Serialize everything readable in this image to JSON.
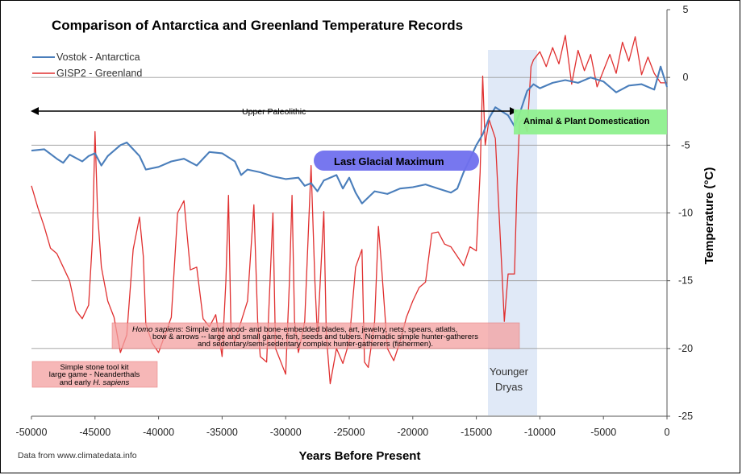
{
  "chart_data": {
    "type": "line",
    "title": "Comparison of Antarctica and Greenland Temperature Records",
    "xlabel": "Years Before Present",
    "ylabel": "Temperature (°C)",
    "xlim": [
      -50000,
      0
    ],
    "ylim": [
      -25,
      5
    ],
    "x_ticks": [
      "-50000",
      "-45000",
      "-40000",
      "-35000",
      "-30000",
      "-25000",
      "-20000",
      "-15000",
      "-10000",
      "-5000",
      "0"
    ],
    "y_ticks": [
      "5",
      "0",
      "-5",
      "-10",
      "-15",
      "-20",
      "-25"
    ],
    "gridlines": [
      -25,
      -20,
      -15,
      -10,
      -5,
      0
    ],
    "colors": {
      "vostok": "#4a7ebb",
      "gisp2": "#e03030"
    },
    "series": [
      {
        "name": "Vostok - Antarctica",
        "points": [
          [
            -50000,
            -5.4
          ],
          [
            -49000,
            -5.3
          ],
          [
            -48000,
            -6
          ],
          [
            -47500,
            -6.3
          ],
          [
            -47000,
            -5.7
          ],
          [
            -46000,
            -6.2
          ],
          [
            -45500,
            -5.8
          ],
          [
            -45000,
            -5.6
          ],
          [
            -44500,
            -6.5
          ],
          [
            -44000,
            -5.8
          ],
          [
            -43500,
            -5.4
          ],
          [
            -43000,
            -5
          ],
          [
            -42500,
            -4.8
          ],
          [
            -42000,
            -5.3
          ],
          [
            -41500,
            -5.8
          ],
          [
            -41000,
            -6.8
          ],
          [
            -40000,
            -6.6
          ],
          [
            -39000,
            -6.2
          ],
          [
            -38000,
            -6
          ],
          [
            -37000,
            -6.5
          ],
          [
            -36000,
            -5.5
          ],
          [
            -35000,
            -5.6
          ],
          [
            -34000,
            -6.2
          ],
          [
            -33500,
            -7.2
          ],
          [
            -33000,
            -6.8
          ],
          [
            -32000,
            -7
          ],
          [
            -31000,
            -7.3
          ],
          [
            -30000,
            -7.5
          ],
          [
            -29000,
            -7.4
          ],
          [
            -28500,
            -8
          ],
          [
            -28000,
            -7.8
          ],
          [
            -27500,
            -8.4
          ],
          [
            -27000,
            -7.6
          ],
          [
            -26000,
            -7.2
          ],
          [
            -25500,
            -8.2
          ],
          [
            -25000,
            -7.4
          ],
          [
            -24500,
            -8.5
          ],
          [
            -24000,
            -9.3
          ],
          [
            -23000,
            -8.4
          ],
          [
            -22000,
            -8.6
          ],
          [
            -21000,
            -8.2
          ],
          [
            -20000,
            -8.1
          ],
          [
            -19000,
            -7.9
          ],
          [
            -18000,
            -8.2
          ],
          [
            -17000,
            -8.5
          ],
          [
            -16500,
            -8.2
          ],
          [
            -16000,
            -7
          ],
          [
            -15500,
            -6
          ],
          [
            -15000,
            -5
          ],
          [
            -14500,
            -4.2
          ],
          [
            -14000,
            -3
          ],
          [
            -13500,
            -2.2
          ],
          [
            -13000,
            -2.5
          ],
          [
            -12500,
            -2.8
          ],
          [
            -12000,
            -3.6
          ],
          [
            -11500,
            -2.4
          ],
          [
            -11000,
            -1
          ],
          [
            -10500,
            -0.5
          ],
          [
            -10000,
            -0.8
          ],
          [
            -9000,
            -0.4
          ],
          [
            -8000,
            -0.2
          ],
          [
            -7000,
            -0.4
          ],
          [
            -6000,
            0
          ],
          [
            -5000,
            -0.3
          ],
          [
            -4000,
            -1.1
          ],
          [
            -3000,
            -0.6
          ],
          [
            -2000,
            -0.5
          ],
          [
            -1000,
            -0.9
          ],
          [
            -500,
            0.8
          ],
          [
            0,
            -0.7
          ]
        ]
      },
      {
        "name": "GISP2 - Greenland",
        "points": [
          [
            -50000,
            -8
          ],
          [
            -49500,
            -9.6
          ],
          [
            -49000,
            -11
          ],
          [
            -48500,
            -12.6
          ],
          [
            -48000,
            -13
          ],
          [
            -47500,
            -14
          ],
          [
            -47000,
            -15
          ],
          [
            -46500,
            -17.2
          ],
          [
            -46000,
            -17.8
          ],
          [
            -45500,
            -16.8
          ],
          [
            -45200,
            -12
          ],
          [
            -45000,
            -4
          ],
          [
            -44800,
            -10
          ],
          [
            -44500,
            -14
          ],
          [
            -44000,
            -16.5
          ],
          [
            -43500,
            -17.7
          ],
          [
            -43000,
            -20.3
          ],
          [
            -42500,
            -19
          ],
          [
            -42000,
            -12.7
          ],
          [
            -41500,
            -10.3
          ],
          [
            -41200,
            -13.2
          ],
          [
            -41000,
            -18.2
          ],
          [
            -40500,
            -19.6
          ],
          [
            -40000,
            -20.3
          ],
          [
            -39500,
            -19
          ],
          [
            -39000,
            -17.7
          ],
          [
            -38500,
            -10
          ],
          [
            -38000,
            -9.1
          ],
          [
            -37500,
            -14.2
          ],
          [
            -37000,
            -14
          ],
          [
            -36500,
            -17.8
          ],
          [
            -36000,
            -18.4
          ],
          [
            -35500,
            -17.5
          ],
          [
            -35000,
            -20.6
          ],
          [
            -34700,
            -15
          ],
          [
            -34500,
            -8.7
          ],
          [
            -34300,
            -18.7
          ],
          [
            -34000,
            -19.5
          ],
          [
            -33500,
            -18
          ],
          [
            -33000,
            -16.5
          ],
          [
            -32500,
            -9.4
          ],
          [
            -32200,
            -18
          ],
          [
            -32000,
            -20.6
          ],
          [
            -31500,
            -21
          ],
          [
            -31000,
            -10
          ],
          [
            -30800,
            -20
          ],
          [
            -30500,
            -20.7
          ],
          [
            -30000,
            -21.9
          ],
          [
            -29700,
            -15
          ],
          [
            -29500,
            -8.7
          ],
          [
            -29300,
            -18
          ],
          [
            -29000,
            -20.3
          ],
          [
            -28500,
            -18
          ],
          [
            -28000,
            -6.5
          ],
          [
            -27700,
            -15
          ],
          [
            -27500,
            -19.1
          ],
          [
            -27000,
            -9.9
          ],
          [
            -26800,
            -19
          ],
          [
            -26500,
            -22.6
          ],
          [
            -26000,
            -20
          ],
          [
            -25500,
            -21.1
          ],
          [
            -25000,
            -19.5
          ],
          [
            -24500,
            -14
          ],
          [
            -24000,
            -12.7
          ],
          [
            -23800,
            -21
          ],
          [
            -23500,
            -21.4
          ],
          [
            -23000,
            -18
          ],
          [
            -22700,
            -11
          ],
          [
            -22500,
            -13.4
          ],
          [
            -22000,
            -20
          ],
          [
            -21500,
            -20.9
          ],
          [
            -21000,
            -19.5
          ],
          [
            -20500,
            -17.7
          ],
          [
            -20000,
            -16.5
          ],
          [
            -19500,
            -15.5
          ],
          [
            -19000,
            -15.1
          ],
          [
            -18500,
            -11.5
          ],
          [
            -18000,
            -11.4
          ],
          [
            -17500,
            -12.3
          ],
          [
            -17000,
            -12.5
          ],
          [
            -16500,
            -13.2
          ],
          [
            -16000,
            -13.9
          ],
          [
            -15500,
            -12.5
          ],
          [
            -15000,
            -12.8
          ],
          [
            -14700,
            -7
          ],
          [
            -14500,
            0.1
          ],
          [
            -14300,
            -5
          ],
          [
            -14000,
            -3.1
          ],
          [
            -13500,
            -4.5
          ],
          [
            -13000,
            -14
          ],
          [
            -12800,
            -18
          ],
          [
            -12500,
            -14.5
          ],
          [
            -12000,
            -14.5
          ],
          [
            -11800,
            -8
          ],
          [
            -11600,
            -3.3
          ],
          [
            -11300,
            -3.1
          ],
          [
            -11000,
            -4
          ],
          [
            -10700,
            0.8
          ],
          [
            -10500,
            1.3
          ],
          [
            -10000,
            1.9
          ],
          [
            -9500,
            0.8
          ],
          [
            -9000,
            2.2
          ],
          [
            -8500,
            1
          ],
          [
            -8000,
            3.1
          ],
          [
            -7500,
            -0.5
          ],
          [
            -7000,
            2
          ],
          [
            -6500,
            0.5
          ],
          [
            -6000,
            1.7
          ],
          [
            -5500,
            -0.7
          ],
          [
            -5000,
            0.5
          ],
          [
            -4500,
            1.7
          ],
          [
            -4000,
            0.3
          ],
          [
            -3500,
            2.6
          ],
          [
            -3000,
            1.2
          ],
          [
            -2500,
            3
          ],
          [
            -2000,
            0.2
          ],
          [
            -1500,
            1.5
          ],
          [
            -1000,
            0.3
          ],
          [
            -500,
            -0.4
          ],
          [
            0,
            -0.4
          ]
        ]
      }
    ],
    "annotations": {
      "upper_paleolithic": "Upper Paleolithic",
      "lgm": "Last Glacial Maximum",
      "domestication": "Animal & Plant Domestication",
      "younger_dryas_1": "Younger",
      "younger_dryas_2": "Dryas",
      "homo_sapiens_italic": "Homo sapiens",
      "homo_sapiens_line1": ":  Simple and wood- and bone-embedded blades, art, jewelry, nets, spears, atlatls,",
      "homo_sapiens_line2": "bow & arrows -- large and small game, fish, seeds and tubers.  Nomadic simple hunter-gatherers",
      "homo_sapiens_line3": "and sedentary/semi-sedentary complex hunter-gatherers (fishermen).",
      "stone_line1": "Simple stone tool kit",
      "stone_line2": "large game - Neanderthals",
      "stone_line3a": "and early ",
      "stone_line3b": "H. sapiens"
    },
    "source": "Data from www.climatedata.info"
  }
}
